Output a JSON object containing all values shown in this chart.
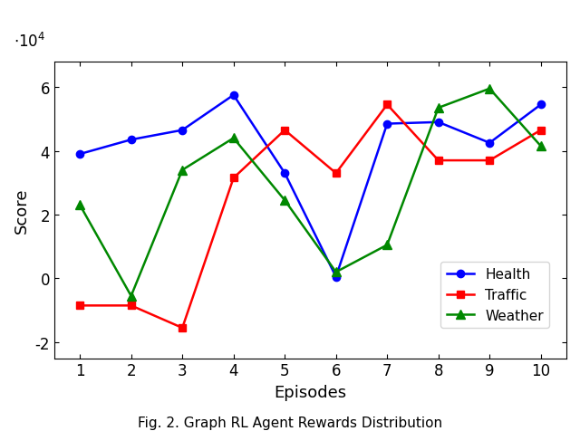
{
  "episodes": [
    1,
    2,
    3,
    4,
    5,
    6,
    7,
    8,
    9,
    10
  ],
  "health": [
    39000,
    43500,
    46500,
    57500,
    33000,
    500,
    48500,
    49000,
    42500,
    54500
  ],
  "traffic": [
    -8500,
    -8500,
    -15500,
    31500,
    46500,
    33000,
    54500,
    37000,
    37000,
    46500
  ],
  "weather": [
    23000,
    -5500,
    34000,
    44000,
    24500,
    2000,
    10500,
    53500,
    59500,
    41500
  ],
  "health_color": "#0000ff",
  "traffic_color": "#ff0000",
  "weather_color": "#008800",
  "xlabel": "Episodes",
  "ylabel": "Score",
  "ylim": [
    -25000,
    68000
  ],
  "xlim": [
    0.5,
    10.5
  ],
  "yticks": [
    -20000,
    0,
    20000,
    40000,
    60000
  ],
  "ytick_labels": [
    "-2",
    "0",
    "2",
    "4",
    "6"
  ],
  "xticks": [
    1,
    2,
    3,
    4,
    5,
    6,
    7,
    8,
    9,
    10
  ],
  "legend_labels": [
    "Health",
    "Traffic",
    "Weather"
  ],
  "caption": "Fig. 2. Graph RL Agent Rewards Distribution",
  "scale_text": "$\\cdot10^4$"
}
